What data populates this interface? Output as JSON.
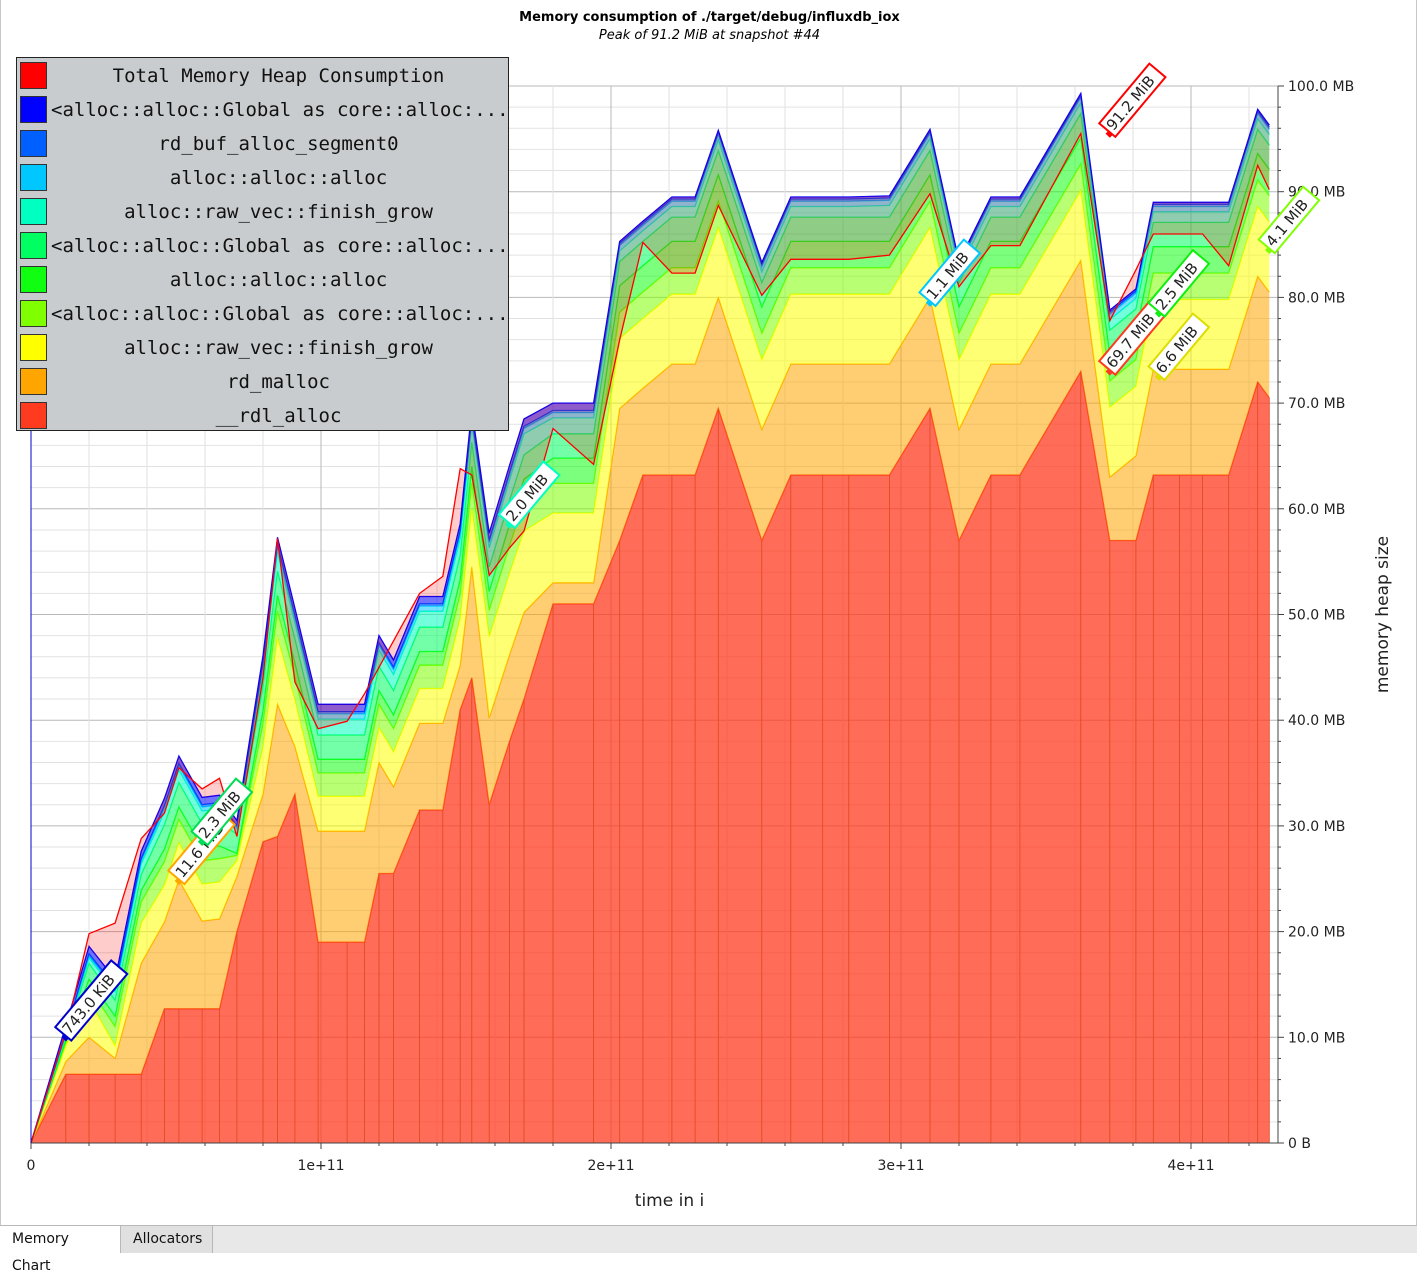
{
  "chart_data": {
    "type": "area",
    "title": "Memory consumption of ./target/debug/influxdb_iox",
    "subtitle": "Peak of 91.2 MiB at snapshot #44",
    "xlabel": "time in i",
    "ylabel": "memory heap size",
    "xlim": [
      0,
      430000000000
    ],
    "ylim": [
      0,
      100
    ],
    "grid": true,
    "legend_position": "top-left",
    "x_ticks": [
      {
        "value": 0,
        "label": "0"
      },
      {
        "value": 100000000000,
        "label": "1e+11"
      },
      {
        "value": 200000000000,
        "label": "2e+11"
      },
      {
        "value": 300000000000,
        "label": "3e+11"
      },
      {
        "value": 400000000000,
        "label": "4e+11"
      }
    ],
    "y_ticks": [
      {
        "value": 0,
        "label": "0 B"
      },
      {
        "value": 10,
        "label": "10.0 MB"
      },
      {
        "value": 20,
        "label": "20.0 MB"
      },
      {
        "value": 30,
        "label": "30.0 MB"
      },
      {
        "value": 40,
        "label": "40.0 MB"
      },
      {
        "value": 50,
        "label": "50.0 MB"
      },
      {
        "value": 60,
        "label": "60.0 MB"
      },
      {
        "value": 70,
        "label": "70.0 MB"
      },
      {
        "value": 80,
        "label": "80.0 MB"
      },
      {
        "value": 90,
        "label": "90.0 MB"
      },
      {
        "value": 100,
        "label": "100.0 MB"
      }
    ],
    "x": [
      0,
      12000000000,
      20000000000,
      29000000000,
      38000000000,
      46000000000,
      51000000000,
      59000000000,
      65000000000,
      71000000000,
      80000000000,
      85000000000,
      91000000000,
      99000000000,
      109000000000,
      115000000000,
      120000000000,
      125000000000,
      134000000000,
      142000000000,
      148000000000,
      152000000000,
      158000000000,
      165000000000,
      170000000000,
      180000000000,
      194000000000,
      203000000000,
      211000000000,
      221000000000,
      229000000000,
      237000000000,
      252000000000,
      262000000000,
      273000000000,
      282000000000,
      296000000000,
      310000000000,
      320000000000,
      331000000000,
      341000000000,
      362000000000,
      372000000000,
      381000000000,
      387000000000,
      396000000000,
      404000000000,
      413000000000,
      423000000000,
      427000000000
    ],
    "series": [
      {
        "name": "__rdl_alloc",
        "color": "#ff3b1f",
        "values": [
          0,
          6.5,
          6.5,
          6.5,
          6.5,
          12.7,
          12.7,
          12.7,
          12.7,
          20,
          28.5,
          29,
          33,
          19,
          19,
          19,
          25.5,
          25.5,
          31.5,
          31.5,
          41,
          44,
          32,
          38,
          42,
          51,
          51,
          57,
          63.2,
          63.2,
          63.2,
          69.5,
          57,
          63.2,
          63.2,
          63.2,
          63.2,
          69.5,
          57,
          63.2,
          63.2,
          73,
          57,
          57,
          63.2,
          63.2,
          63.2,
          63.2,
          72,
          70.5
        ]
      },
      {
        "name": "rd_malloc",
        "color": "#ffa500",
        "values": [
          0,
          1.2,
          3.5,
          1.5,
          10.5,
          8.2,
          12.2,
          8.3,
          8.5,
          5.2,
          4.5,
          12.5,
          4.5,
          10.5,
          10.5,
          10.5,
          10.5,
          8.2,
          8.2,
          8.2,
          4.2,
          10.5,
          8.2,
          8.2,
          8.2,
          2,
          2,
          12.5,
          8.2,
          10.5,
          10.5,
          10.5,
          10.5,
          10.5,
          10.5,
          10.5,
          10.5,
          10.5,
          10.5,
          10.5,
          10.5,
          10.5,
          6,
          8,
          10,
          10,
          10,
          10,
          10,
          10
        ]
      },
      {
        "name": "alloc::raw_vec::finish_grow",
        "color": "#ffff00",
        "values": [
          0,
          1.5,
          3.5,
          1.2,
          3.8,
          3.5,
          3.5,
          3.5,
          3.5,
          1.5,
          4.4,
          6.3,
          4.4,
          3.3,
          3.3,
          3.3,
          3.3,
          3.3,
          3.3,
          3.3,
          4.4,
          5.5,
          7.7,
          7.7,
          7.7,
          6.6,
          6.6,
          6.6,
          6.6,
          6.6,
          6.6,
          6.6,
          6.6,
          6.6,
          6.6,
          6.6,
          6.6,
          6.6,
          6.6,
          6.6,
          6.6,
          6.6,
          6.6,
          6.6,
          6.6,
          6.6,
          6.6,
          6.6,
          6.6,
          6.6
        ]
      },
      {
        "name": "<alloc::alloc::Global as core::alloc::...",
        "color": "#80ff00",
        "values": [
          0,
          0.3,
          1.2,
          1.8,
          2.0,
          2.2,
          2.2,
          2.2,
          2.2,
          0.5,
          2.2,
          2.5,
          2.2,
          2.2,
          2.2,
          2.2,
          2.2,
          2.2,
          2.2,
          2.2,
          2.3,
          2.4,
          2.5,
          2.6,
          2.7,
          2.8,
          2.8,
          2.5,
          2.5,
          2.5,
          2.5,
          2.5,
          2.5,
          2.5,
          2.5,
          2.5,
          2.5,
          2.5,
          2.5,
          2.5,
          2.5,
          2.5,
          2.5,
          2.5,
          2.5,
          2.5,
          2.5,
          2.5,
          2.5,
          2.5
        ]
      },
      {
        "name": "alloc::alloc::alloc",
        "color": "#10ff10",
        "values": [
          0,
          0.2,
          0.8,
          1.0,
          1.1,
          1.2,
          1.2,
          1.2,
          1.2,
          0.2,
          1.3,
          1.5,
          1.3,
          1.3,
          1.3,
          1.3,
          1.3,
          1.3,
          1.3,
          1.3,
          1.4,
          1.6,
          1.8,
          2.0,
          2.2,
          2.4,
          2.4,
          2.5,
          2.5,
          2.5,
          2.5,
          2.5,
          2.5,
          2.5,
          2.5,
          2.5,
          2.5,
          2.5,
          2.5,
          2.5,
          2.5,
          2.5,
          2.5,
          2.5,
          2.5,
          2.5,
          2.5,
          2.5,
          2.5,
          2.5
        ]
      },
      {
        "name": "<alloc::alloc::Global as core::alloc::...",
        "color": "#00ff60",
        "values": [
          0,
          0.3,
          1.5,
          1.5,
          1.5,
          2.3,
          2.3,
          2.3,
          2.3,
          1.8,
          2.3,
          2.3,
          2.3,
          2.3,
          2.3,
          2.3,
          2.3,
          2.3,
          2.3,
          2.3,
          2.3,
          2.3,
          2.3,
          2.3,
          2.3,
          2.3,
          2.3,
          2.3,
          2.3,
          2.3,
          2.3,
          2.3,
          2.3,
          2.3,
          2.3,
          2.3,
          2.3,
          2.3,
          2.3,
          2.3,
          2.3,
          2.3,
          2.3,
          2.3,
          2.3,
          2.3,
          2.3,
          2.3,
          2.3,
          2.3
        ]
      },
      {
        "name": "alloc::raw_vec::finish_grow",
        "color": "#00ffc0",
        "values": [
          0,
          0.2,
          0.5,
          0.8,
          1.0,
          1.2,
          1.2,
          1.2,
          1.2,
          0.5,
          1.5,
          1.8,
          1.5,
          1.5,
          1.5,
          1.5,
          1.5,
          1.5,
          1.5,
          1.5,
          1.6,
          1.7,
          1.8,
          1.9,
          2.0,
          1.5,
          1.5,
          1.0,
          1.0,
          1.0,
          1.0,
          1.0,
          1.0,
          1.0,
          1.0,
          1.0,
          1.1,
          1.1,
          1.1,
          1.0,
          1.0,
          1.0,
          1.0,
          1.0,
          1.0,
          1.0,
          1.0,
          1.0,
          1.0,
          1.0
        ]
      },
      {
        "name": "alloc::alloc::alloc",
        "color": "#00c8ff",
        "values": [
          0,
          0.1,
          0.2,
          0.3,
          0.3,
          0.4,
          0.4,
          0.4,
          0.4,
          0.2,
          0.5,
          0.5,
          0.5,
          0.5,
          0.5,
          0.5,
          0.5,
          0.5,
          0.5,
          0.5,
          0.5,
          0.5,
          0.5,
          0.5,
          0.5,
          0.5,
          0.5,
          0.5,
          0.5,
          0.5,
          0.5,
          0.5,
          0.5,
          0.5,
          0.5,
          0.5,
          0.5,
          0.5,
          0.5,
          0.5,
          0.5,
          0.5,
          0.5,
          0.5,
          0.5,
          0.5,
          0.5,
          0.5,
          0.5,
          0.5
        ]
      },
      {
        "name": "rd_buf_alloc_segment0",
        "color": "#0060ff",
        "values": [
          0,
          0.1,
          0.2,
          0.2,
          0.2,
          0.2,
          0.2,
          0.2,
          0.2,
          0.1,
          0.2,
          0.2,
          0.2,
          0.2,
          0.2,
          0.2,
          0.2,
          0.2,
          0.2,
          0.2,
          0.2,
          0.2,
          0.2,
          0.2,
          0.2,
          0.2,
          0.2,
          0.2,
          0.2,
          0.2,
          0.2,
          0.2,
          0.2,
          0.2,
          0.2,
          0.2,
          0.2,
          0.2,
          0.2,
          0.2,
          0.2,
          0.2,
          0.2,
          0.2,
          0.2,
          0.2,
          0.2,
          0.2,
          0.2,
          0.2
        ]
      },
      {
        "name": "<alloc::alloc::Global as core::alloc::...",
        "color": "#0000ff",
        "values": [
          0,
          0.7,
          0.7,
          0.7,
          0.7,
          0.7,
          0.7,
          0.7,
          0.7,
          0.5,
          0.7,
          0.7,
          0.7,
          0.7,
          0.7,
          0.7,
          0.7,
          0.7,
          0.7,
          0.7,
          0.7,
          0.7,
          0.7,
          0.7,
          0.7,
          0.7,
          0.7,
          0.2,
          0.2,
          0.2,
          0.2,
          0.2,
          0.2,
          0.2,
          0.2,
          0.2,
          0.2,
          0.2,
          0.2,
          0.2,
          0.2,
          0.2,
          0.2,
          0.2,
          0.2,
          0.2,
          0.2,
          0.2,
          0.2,
          0.2
        ]
      }
    ],
    "total": {
      "name": "Total Memory Heap Consumption",
      "color": "#ff0000",
      "values": [
        0,
        10.5,
        19.8,
        20.8,
        28.8,
        31.2,
        35.5,
        33.5,
        34.5,
        29,
        44,
        57.2,
        43.6,
        39.2,
        39.9,
        42.5,
        45,
        47.5,
        52,
        53.6,
        63.8,
        63.2,
        53.7,
        56.3,
        57.9,
        67.6,
        64.2,
        76,
        85.2,
        82.3,
        82.3,
        88.7,
        80.2,
        83.6,
        83.6,
        83.6,
        84,
        89.8,
        81,
        84.9,
        84.9,
        95.5,
        77.8,
        82.6,
        86,
        86,
        86,
        83,
        92.5,
        90.2
      ]
    },
    "annotations": [
      {
        "label": "743.0 KiB",
        "x": 12000000000,
        "y": 10,
        "color": "#0000cc"
      },
      {
        "label": "11.6 MiB",
        "x": 51000000000,
        "y": 24.8,
        "color": "#ffa500"
      },
      {
        "label": "2.3 MiB",
        "x": 59000000000,
        "y": 28.5,
        "color": "#00dd55"
      },
      {
        "label": "2.0 MiB",
        "x": 165000000000,
        "y": 58.5,
        "color": "#00ffc0"
      },
      {
        "label": "1.1 MiB",
        "x": 310000000000,
        "y": 79.5,
        "color": "#00c8ff"
      },
      {
        "label": "91.2 MiB",
        "x": 372000000000,
        "y": 95.5,
        "color": "#ff0000"
      },
      {
        "label": "69.7 MiB",
        "x": 372000000000,
        "y": 73,
        "color": "#ff3b1f"
      },
      {
        "label": "2.5 MiB",
        "x": 389000000000,
        "y": 78.5,
        "color": "#10ee10"
      },
      {
        "label": "6.6 MiB",
        "x": 389000000000,
        "y": 72.5,
        "color": "#dddd00"
      },
      {
        "label": "4.1 MiB",
        "x": 427000000000,
        "y": 84.5,
        "color": "#80ff00"
      }
    ]
  },
  "legend": [
    {
      "label": "Total Memory Heap Consumption",
      "color": "#ff0000"
    },
    {
      "label": "<alloc::alloc::Global as core::alloc:...",
      "color": "#0000ff"
    },
    {
      "label": "rd_buf_alloc_segment0",
      "color": "#0060ff"
    },
    {
      "label": "alloc::alloc::alloc",
      "color": "#00c8ff"
    },
    {
      "label": "alloc::raw_vec::finish_grow",
      "color": "#00ffc0"
    },
    {
      "label": "<alloc::alloc::Global as core::alloc:...",
      "color": "#00ff60"
    },
    {
      "label": "alloc::alloc::alloc",
      "color": "#10ff10"
    },
    {
      "label": "<alloc::alloc::Global as core::alloc:...",
      "color": "#80ff00"
    },
    {
      "label": "alloc::raw_vec::finish_grow",
      "color": "#ffff00"
    },
    {
      "label": "rd_malloc",
      "color": "#ffa500"
    },
    {
      "label": "__rdl_alloc",
      "color": "#ff3b1f"
    }
  ],
  "tabs": [
    {
      "label": "Memory Chart",
      "active": true
    },
    {
      "label": "Allocators",
      "active": false
    }
  ]
}
